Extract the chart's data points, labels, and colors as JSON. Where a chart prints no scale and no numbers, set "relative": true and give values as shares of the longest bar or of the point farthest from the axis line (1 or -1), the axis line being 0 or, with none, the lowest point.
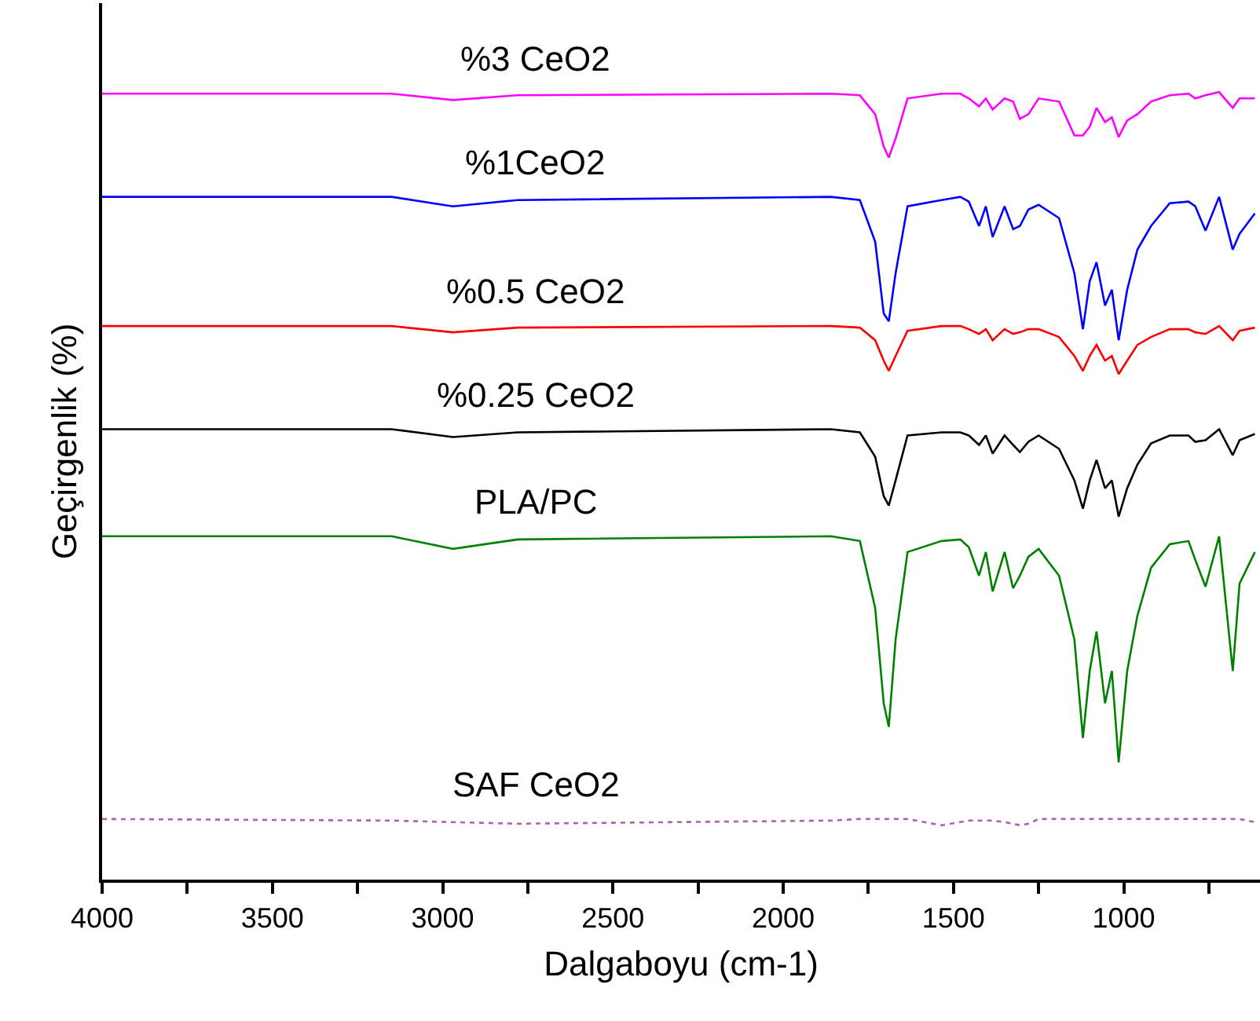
{
  "chart_data": {
    "type": "line",
    "relative": true,
    "xlabel": "Dalgaboyu (cm-1)",
    "ylabel": "Geçirgenlik (%)",
    "marker": "none",
    "tick_labels": "x",
    "xlim": [
      4000,
      600
    ],
    "xticks": [
      4000,
      {
        "value": 3750,
        "label": null
      },
      3500,
      {
        "value": 3250,
        "label": null
      },
      3000,
      {
        "value": 2750,
        "label": null
      },
      2500,
      {
        "value": 2250,
        "label": null
      },
      2000,
      {
        "value": 1750,
        "label": null
      },
      1500,
      {
        "value": 1250,
        "label": null
      },
      1000,
      {
        "value": 750,
        "label": null
      }
    ],
    "x": [
      4000,
      3150,
      2970,
      2780,
      1860,
      1775,
      1730,
      1705,
      1690,
      1670,
      1635,
      1535,
      1480,
      1455,
      1425,
      1405,
      1385,
      1350,
      1325,
      1305,
      1280,
      1250,
      1190,
      1145,
      1120,
      1100,
      1080,
      1055,
      1035,
      1015,
      990,
      960,
      920,
      865,
      810,
      790,
      760,
      720,
      680,
      660,
      615
    ],
    "series": [
      {
        "name": "%3 CeO2",
        "color": "#ff00ff",
        "values": [
          0.998,
          0.998,
          0.99,
          0.996,
          0.998,
          0.996,
          0.972,
          0.931,
          0.917,
          0.941,
          0.992,
          0.998,
          0.998,
          0.992,
          0.982,
          0.992,
          0.978,
          0.992,
          0.988,
          0.966,
          0.972,
          0.992,
          0.988,
          0.945,
          0.945,
          0.956,
          0.98,
          0.962,
          0.968,
          0.943,
          0.964,
          0.972,
          0.988,
          0.996,
          0.998,
          0.992,
          0.996,
          1.0,
          0.98,
          0.992,
          0.992
        ]
      },
      {
        "name": "%1CeO2",
        "color": "#0000ff",
        "values": [
          0.867,
          0.867,
          0.855,
          0.863,
          0.867,
          0.863,
          0.81,
          0.719,
          0.709,
          0.77,
          0.855,
          0.863,
          0.867,
          0.861,
          0.83,
          0.855,
          0.816,
          0.855,
          0.826,
          0.83,
          0.851,
          0.857,
          0.84,
          0.77,
          0.699,
          0.76,
          0.784,
          0.729,
          0.749,
          0.685,
          0.749,
          0.8,
          0.83,
          0.859,
          0.861,
          0.855,
          0.824,
          0.867,
          0.8,
          0.82,
          0.846
        ]
      },
      {
        "name": "%0.5 CeO2",
        "color": "#ff0000",
        "values": [
          0.703,
          0.703,
          0.695,
          0.701,
          0.703,
          0.701,
          0.685,
          0.659,
          0.646,
          0.665,
          0.697,
          0.703,
          0.703,
          0.699,
          0.693,
          0.699,
          0.685,
          0.699,
          0.693,
          0.695,
          0.699,
          0.699,
          0.689,
          0.665,
          0.646,
          0.665,
          0.679,
          0.659,
          0.665,
          0.642,
          0.659,
          0.679,
          0.689,
          0.699,
          0.699,
          0.695,
          0.693,
          0.703,
          0.685,
          0.697,
          0.701
        ]
      },
      {
        "name": "%0.25 CeO2",
        "color": "#000000",
        "values": [
          0.572,
          0.572,
          0.562,
          0.568,
          0.572,
          0.568,
          0.537,
          0.487,
          0.475,
          0.507,
          0.564,
          0.568,
          0.568,
          0.564,
          0.552,
          0.564,
          0.541,
          0.564,
          0.552,
          0.543,
          0.556,
          0.564,
          0.547,
          0.507,
          0.471,
          0.507,
          0.533,
          0.497,
          0.507,
          0.461,
          0.497,
          0.527,
          0.554,
          0.564,
          0.564,
          0.556,
          0.558,
          0.572,
          0.539,
          0.558,
          0.566
        ]
      },
      {
        "name": "PLA/PC",
        "color": "#008000",
        "values": [
          0.436,
          0.436,
          0.42,
          0.432,
          0.436,
          0.43,
          0.345,
          0.224,
          0.194,
          0.305,
          0.416,
          0.43,
          0.432,
          0.422,
          0.386,
          0.416,
          0.366,
          0.416,
          0.37,
          0.386,
          0.41,
          0.42,
          0.386,
          0.305,
          0.18,
          0.265,
          0.315,
          0.224,
          0.265,
          0.149,
          0.265,
          0.335,
          0.396,
          0.426,
          0.43,
          0.406,
          0.372,
          0.436,
          0.265,
          0.376,
          0.416
        ]
      },
      {
        "name": "SAF CeO2",
        "color": "#b060b0",
        "line_style": "dotted",
        "values": [
          0.077,
          0.075,
          0.073,
          0.071,
          0.075,
          0.077,
          0.077,
          0.077,
          0.077,
          0.077,
          0.077,
          0.069,
          0.073,
          0.075,
          0.075,
          0.075,
          0.075,
          0.073,
          0.071,
          0.069,
          0.071,
          0.077,
          0.077,
          0.077,
          0.077,
          0.077,
          0.077,
          0.077,
          0.077,
          0.077,
          0.077,
          0.077,
          0.077,
          0.077,
          0.077,
          0.077,
          0.077,
          0.077,
          0.077,
          0.077,
          0.073
        ]
      }
    ]
  }
}
